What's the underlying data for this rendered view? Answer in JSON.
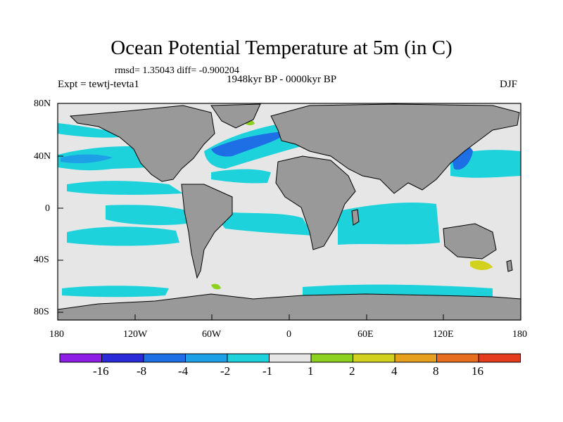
{
  "title": "Ocean Potential Temperature at 5m (in C)",
  "stats": "rmsd= 1.35043  diff= -0.900204",
  "experiment": "Expt = tewtj-tevta1",
  "period": "1948kyr BP - 0000kyr BP",
  "season": "DJF",
  "y_axis_labels": [
    "80N",
    "40N",
    "0",
    "40S",
    "80S"
  ],
  "x_axis_labels": [
    "180",
    "120W",
    "60W",
    "0",
    "60E",
    "120E",
    "180"
  ],
  "colorbar": {
    "labels": [
      "-16",
      "-8",
      "-4",
      "-2",
      "-1",
      "1",
      "2",
      "4",
      "8",
      "16"
    ],
    "colors": [
      "#8c1ee6",
      "#2a2ad8",
      "#1e6fe6",
      "#1ea0e6",
      "#1ed2dc",
      "#e6e6e6",
      "#8cd21e",
      "#d2d21e",
      "#e6a01e",
      "#e66e1e",
      "#e63c1e"
    ]
  },
  "colors": {
    "ocean_neutral": "#e6e6e6",
    "land": "#999999",
    "cool_light": "#1ed2dc",
    "cool_mid": "#1ea0e6",
    "cool_strong": "#1e6fe6",
    "warm_light": "#8cd21e",
    "warm_mid": "#d2d21e"
  }
}
